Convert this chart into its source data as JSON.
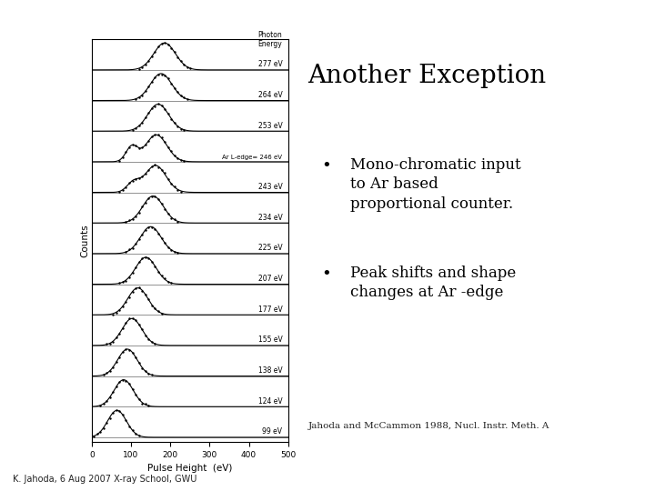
{
  "title": "Another Exception",
  "bullet1_line1": "Mono-chromatic input",
  "bullet1_line2": "to Ar based",
  "bullet1_line3": "proportional counter.",
  "bullet2_line1": "Peak shifts and shape",
  "bullet2_line2": "changes at Ar -edge",
  "citation": "Jahoda and McCammon 1988, Nucl. Instr. Meth. A",
  "footer": "K. Jahoda, 6 Aug 2007 X-ray School, GWU",
  "energies": [
    277,
    264,
    253,
    246,
    243,
    234,
    225,
    207,
    177,
    155,
    138,
    124,
    99
  ],
  "ar_edge_label": "Ar L-edge= 246 eV",
  "xlabel": "Pulse Height  (eV)",
  "ylabel": "Counts",
  "background_color": "#ffffff"
}
